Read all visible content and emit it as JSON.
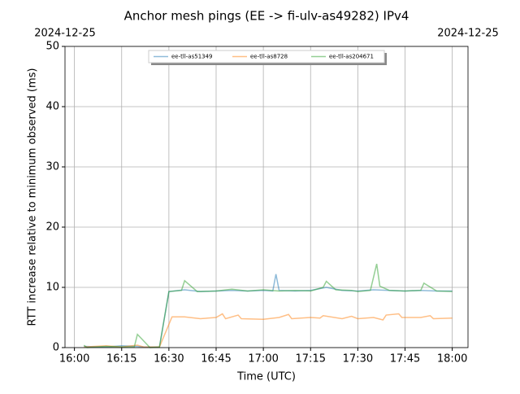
{
  "chart_data": {
    "type": "line",
    "title": "Anchor mesh pings (EE -> fi-ulv-as49282) IPv4",
    "top_left_label": "2024-12-25",
    "top_right_label": "2024-12-25",
    "x_label": "Time (UTC)",
    "y_label": "RTT increase relative to minimum observed (ms)",
    "xlim": [
      "15:57",
      "18:05"
    ],
    "xticks": [
      "16:00",
      "16:15",
      "16:30",
      "16:45",
      "17:00",
      "17:15",
      "17:30",
      "17:45",
      "18:00"
    ],
    "ylim": [
      0,
      50
    ],
    "yticks": [
      0,
      10,
      20,
      30,
      40,
      50
    ],
    "grid": true,
    "legend": "upper center",
    "series": [
      {
        "name": "ee-tll-as51349",
        "color": "#1f77b4",
        "x": [
          "16:03",
          "16:10",
          "16:15",
          "16:20",
          "16:22",
          "16:27",
          "16:30",
          "16:35",
          "16:40",
          "16:45",
          "16:50",
          "16:55",
          "17:00",
          "17:03",
          "17:04",
          "17:05",
          "17:10",
          "17:15",
          "17:20",
          "17:25",
          "17:30",
          "17:35",
          "17:40",
          "17:45",
          "17:50",
          "17:55",
          "18:00"
        ],
        "values": [
          0.2,
          0.1,
          0.3,
          0.2,
          0.1,
          0.1,
          9.3,
          9.6,
          9.3,
          9.4,
          9.5,
          9.4,
          9.5,
          9.4,
          12.2,
          9.5,
          9.4,
          9.5,
          10.0,
          9.5,
          9.4,
          9.6,
          9.5,
          9.4,
          9.5,
          9.4,
          9.4
        ]
      },
      {
        "name": "ee-tll-as8728",
        "color": "#ff7f0e",
        "x": [
          "16:03",
          "16:10",
          "16:15",
          "16:20",
          "16:22",
          "16:27",
          "16:31",
          "16:35",
          "16:40",
          "16:45",
          "16:47",
          "16:48",
          "16:52",
          "16:53",
          "17:00",
          "17:05",
          "17:08",
          "17:09",
          "17:15",
          "17:18",
          "17:19",
          "17:25",
          "17:28",
          "17:30",
          "17:35",
          "17:38",
          "17:39",
          "17:43",
          "17:44",
          "17:50",
          "17:53",
          "17:54",
          "18:00"
        ],
        "values": [
          0.1,
          0.3,
          0.1,
          0.4,
          0.1,
          0.1,
          5.1,
          5.1,
          4.8,
          5.0,
          5.6,
          4.8,
          5.4,
          4.8,
          4.7,
          5.0,
          5.5,
          4.8,
          5.0,
          4.9,
          5.3,
          4.8,
          5.2,
          4.8,
          5.0,
          4.6,
          5.4,
          5.6,
          5.0,
          5.0,
          5.3,
          4.8,
          4.9
        ]
      },
      {
        "name": "ee-tll-as204671",
        "color": "#2ca02c",
        "x": [
          "16:03",
          "16:04",
          "16:10",
          "16:15",
          "16:19",
          "16:20",
          "16:24",
          "16:27",
          "16:30",
          "16:34",
          "16:35",
          "16:39",
          "16:45",
          "16:50",
          "16:55",
          "17:00",
          "17:05",
          "17:10",
          "17:15",
          "17:19",
          "17:20",
          "17:23",
          "17:28",
          "17:30",
          "17:34",
          "17:36",
          "17:37",
          "17:40",
          "17:45",
          "17:50",
          "17:51",
          "17:55",
          "18:00"
        ],
        "values": [
          0.4,
          0.0,
          0.2,
          0.1,
          0.1,
          2.2,
          0.0,
          0.1,
          9.3,
          9.5,
          11.1,
          9.3,
          9.4,
          9.7,
          9.4,
          9.6,
          9.4,
          9.5,
          9.4,
          10.0,
          11.0,
          9.6,
          9.5,
          9.3,
          9.5,
          13.9,
          10.2,
          9.5,
          9.4,
          9.5,
          10.7,
          9.4,
          9.3
        ]
      }
    ]
  }
}
